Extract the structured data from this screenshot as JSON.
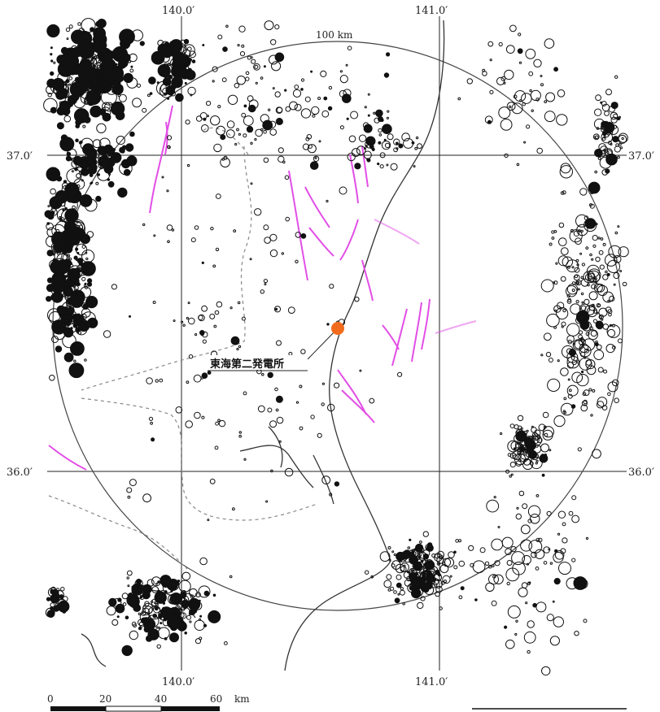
{
  "map": {
    "lon_labels": {
      "top_140": "140.0′",
      "top_141": "141.0′",
      "bottom_140": "140.0′",
      "bottom_141": "141.0′"
    },
    "lat_labels": {
      "left_37": "37.0′",
      "right_37": "37.0′",
      "left_36": "36.0′",
      "right_36": "36.0′"
    },
    "radius_label": "100 km",
    "site": {
      "label": "東海第二発電所",
      "marker_color": "#f26b1d"
    },
    "scale_bar": {
      "ticks": [
        "0",
        "20",
        "40",
        "60"
      ],
      "unit": "km"
    },
    "colors": {
      "fault": "#e24ee6",
      "event": "#111111",
      "site": "#f26b1d",
      "grid": "#222222",
      "boundary": "#777777"
    }
  }
}
